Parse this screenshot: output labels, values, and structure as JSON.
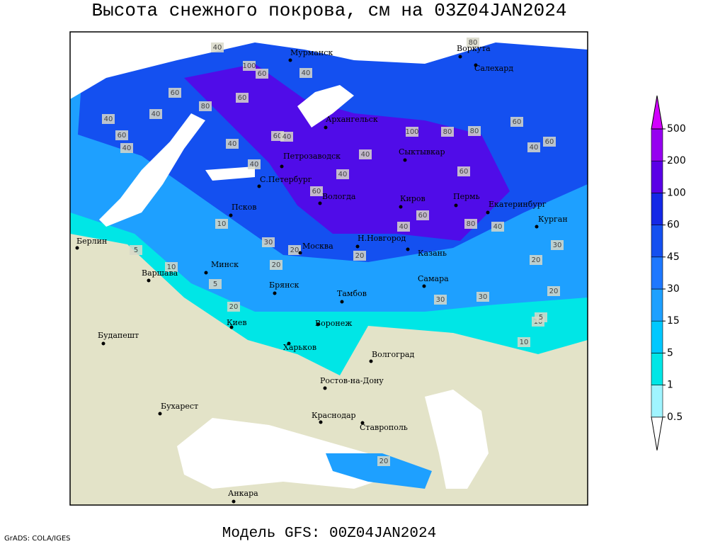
{
  "map": {
    "title": "Высота снежного покрова, см на 03Z04JAN2024",
    "footer": "Модель GFS: 00Z04JAN2024",
    "credit": "GrADS: COLA/IGES",
    "cities": [
      "Мурманск",
      "Воркута",
      "Салехард",
      "Архангельск",
      "Сыктывкар",
      "Петрозаводск",
      "С.Петербург",
      "Вологда",
      "Киров",
      "Пермь",
      "Екатеринбург",
      "Курган",
      "Псков",
      "Москва",
      "Н.Новгород",
      "Казань",
      "Берлин",
      "Минск",
      "Варшава",
      "Брянск",
      "Тамбов",
      "Самара",
      "Киев",
      "Воронеж",
      "Будапешт",
      "Харьков",
      "Волгоград",
      "Ростов-на-Дону",
      "Бухарест",
      "Краснодар",
      "Ставрополь",
      "Анкара"
    ],
    "contour_labels": [
      40,
      100,
      60,
      40,
      60,
      80,
      60,
      40,
      40,
      60,
      40,
      60,
      40,
      40,
      80,
      100,
      80,
      80,
      60,
      40,
      60,
      40,
      40,
      60,
      40,
      60,
      60,
      80,
      40,
      40,
      10,
      5,
      30,
      20,
      10,
      5,
      30,
      20,
      30,
      20,
      10,
      20,
      30,
      20,
      10,
      20,
      5,
      20
    ],
    "colorbar": {
      "levels": [
        0.5,
        1,
        5,
        15,
        30,
        45,
        60,
        100,
        200,
        500
      ],
      "colors": [
        "#ffffff",
        "#a0f4ff",
        "#00e6e6",
        "#00c8ff",
        "#1ea0ff",
        "#1e78ff",
        "#1450f0",
        "#1428e6",
        "#5a00e6",
        "#9600f0",
        "#d200ff"
      ]
    }
  }
}
